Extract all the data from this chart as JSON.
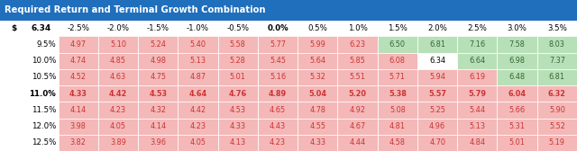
{
  "title": "Required Return and Terminal Growth Combination",
  "title_bg": "#1f6fbd",
  "title_fg": "#ffffff",
  "col_header_label": "$",
  "col_header_value": "6.34",
  "col_headers": [
    "-2.5%",
    "-2.0%",
    "-1.5%",
    "-1.0%",
    "-0.5%",
    "0.0%",
    "0.5%",
    "1.0%",
    "1.5%",
    "2.0%",
    "2.5%",
    "3.0%",
    "3.5%"
  ],
  "row_headers": [
    "9.5%",
    "10.0%",
    "10.5%",
    "11.0%",
    "11.5%",
    "12.0%",
    "12.5%"
  ],
  "current_value": 6.34,
  "highlight_cell": [
    1,
    9
  ],
  "table_data": [
    [
      4.97,
      5.1,
      5.24,
      5.4,
      5.58,
      5.77,
      5.99,
      6.23,
      6.5,
      6.81,
      7.16,
      7.58,
      8.03
    ],
    [
      4.74,
      4.85,
      4.98,
      5.13,
      5.28,
      5.45,
      5.64,
      5.85,
      6.08,
      6.34,
      6.64,
      6.98,
      7.37
    ],
    [
      4.52,
      4.63,
      4.75,
      4.87,
      5.01,
      5.16,
      5.32,
      5.51,
      5.71,
      5.94,
      6.19,
      6.48,
      6.81
    ],
    [
      4.33,
      4.42,
      4.53,
      4.64,
      4.76,
      4.89,
      5.04,
      5.2,
      5.38,
      5.57,
      5.79,
      6.04,
      6.32
    ],
    [
      4.14,
      4.23,
      4.32,
      4.42,
      4.53,
      4.65,
      4.78,
      4.92,
      5.08,
      5.25,
      5.44,
      5.66,
      5.9
    ],
    [
      3.98,
      4.05,
      4.14,
      4.23,
      4.33,
      4.43,
      4.55,
      4.67,
      4.81,
      4.96,
      5.13,
      5.31,
      5.52
    ],
    [
      3.82,
      3.89,
      3.96,
      4.05,
      4.13,
      4.23,
      4.33,
      4.44,
      4.58,
      4.7,
      4.84,
      5.01,
      5.19
    ]
  ],
  "color_below": "#f4b8b8",
  "color_above": "#b8e0b8",
  "color_highlight_white": "#ffffff",
  "text_below": "#cc3333",
  "text_above": "#336633",
  "text_highlight": "#000000",
  "bold_row_idx": 3
}
